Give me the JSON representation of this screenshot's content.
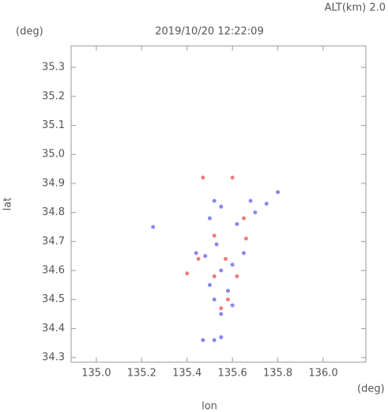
{
  "chart_data": {
    "type": "scatter",
    "title": "2019/10/20 12:22:09",
    "subtitle": "ALT(km) 2.0",
    "y_unit": "(deg)",
    "x_unit": "(deg)",
    "xlabel": "lon",
    "ylabel": "lat",
    "xlim": [
      134.889,
      136.188
    ],
    "ylim": [
      34.284,
      35.374
    ],
    "xticks": [
      {
        "value": 135.0,
        "label": "135.0"
      },
      135.2,
      135.4,
      135.6,
      135.8,
      {
        "value": 136.0,
        "label": "136.0"
      }
    ],
    "yticks": [
      34.3,
      34.4,
      34.5,
      34.6,
      34.7,
      34.8,
      34.9,
      {
        "value": 35.0,
        "label": "35.0"
      },
      35.1,
      35.2,
      35.3
    ],
    "series": [
      {
        "color": "#6a6ae8",
        "x": [
          135.25,
          135.52,
          135.55,
          135.5,
          135.68,
          135.75,
          135.8,
          135.62,
          135.7,
          135.53,
          135.48,
          135.6,
          135.55,
          135.5,
          135.58,
          135.52,
          135.6,
          135.47,
          135.52,
          135.55,
          135.65,
          135.44,
          135.55
        ],
        "values": [
          34.75,
          34.84,
          34.82,
          34.78,
          34.84,
          34.83,
          34.87,
          34.76,
          34.8,
          34.69,
          34.65,
          34.62,
          34.6,
          34.55,
          34.53,
          34.5,
          34.48,
          34.36,
          34.36,
          34.37,
          34.66,
          34.66,
          34.45
        ]
      },
      {
        "color": "#e85a5a",
        "x": [
          135.47,
          135.6,
          135.52,
          135.45,
          135.57,
          135.52,
          135.62,
          135.58,
          135.4,
          135.65,
          135.66,
          135.55
        ],
        "values": [
          34.92,
          34.92,
          34.72,
          34.64,
          34.64,
          34.58,
          34.58,
          34.5,
          34.59,
          34.78,
          34.71,
          34.47
        ]
      }
    ]
  }
}
